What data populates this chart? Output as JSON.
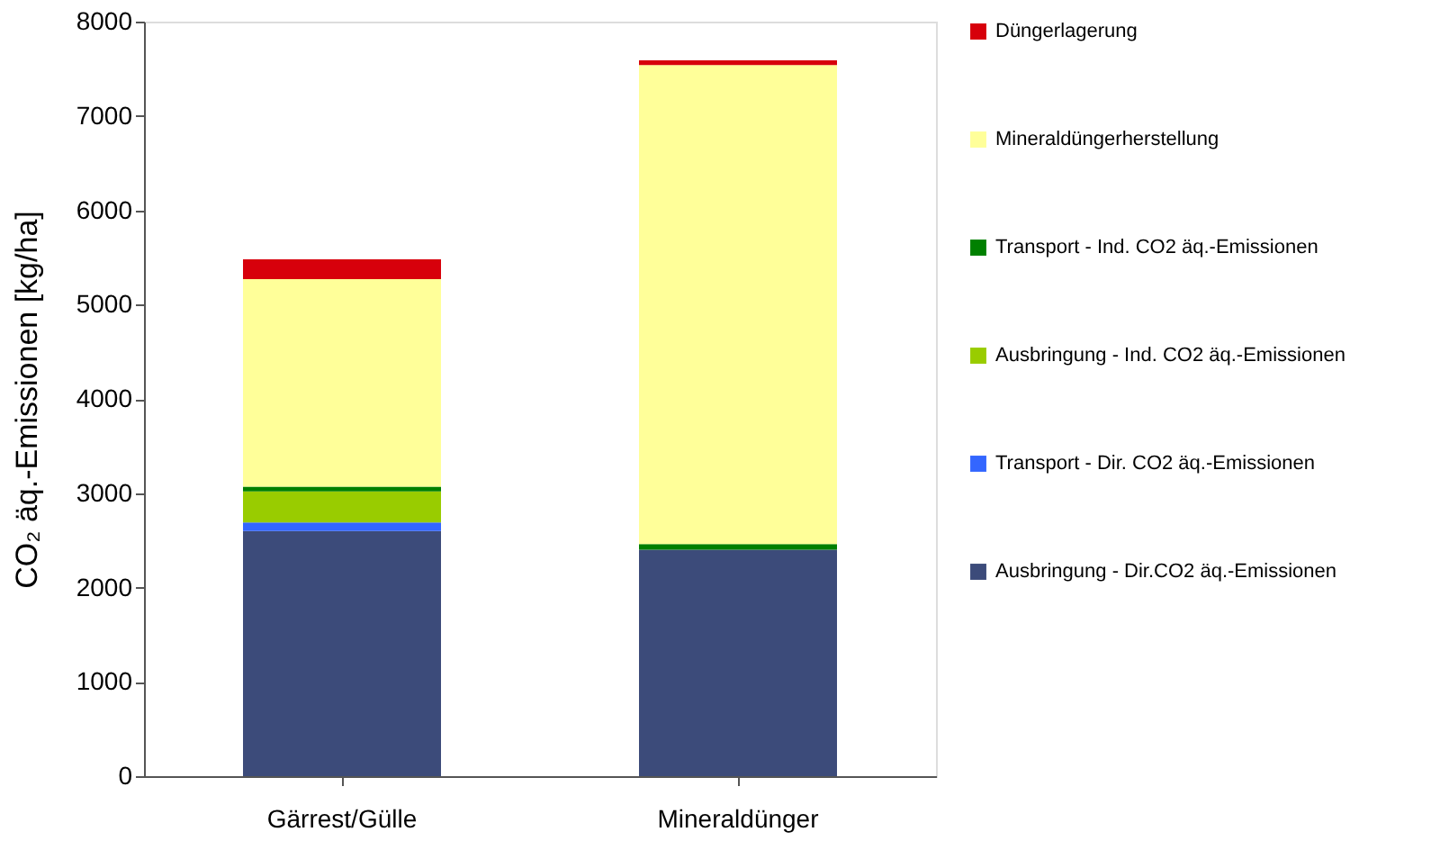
{
  "chart_data": {
    "type": "bar",
    "stacked": true,
    "ylabel": "CO₂ äq.-Emissionen  [kg/ha]",
    "categories": [
      "Gärrest/Gülle",
      "Mineraldünger"
    ],
    "series": [
      {
        "name": "Ausbringung - Dir.CO2 äq.-Emissionen",
        "color": "#3c4b7a",
        "values": [
          2600,
          2400
        ]
      },
      {
        "name": "Transport - Dir. CO2 äq.-Emissionen",
        "color": "#3366ff",
        "values": [
          90,
          0
        ]
      },
      {
        "name": "Ausbringung - Ind. CO2 äq.-Emissionen",
        "color": "#99cc00",
        "values": [
          330,
          0
        ]
      },
      {
        "name": "Transport - Ind. CO2 äq.-Emissionen",
        "color": "#008000",
        "values": [
          50,
          60
        ]
      },
      {
        "name": "Mineraldüngerherstellung",
        "color": "#ffff99",
        "values": [
          2200,
          5080
        ]
      },
      {
        "name": "Düngerlagerung",
        "color": "#d7000b",
        "values": [
          210,
          50
        ]
      }
    ],
    "ylim": [
      0,
      8000
    ],
    "yticks": [
      0,
      1000,
      2000,
      3000,
      4000,
      5000,
      6000,
      7000,
      8000
    ],
    "grid": false,
    "legend": "right"
  }
}
